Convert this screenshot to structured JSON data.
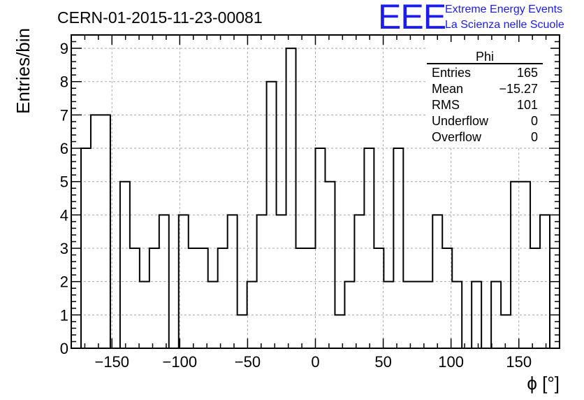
{
  "header": {
    "run_title": "CERN-01-2015-11-23-00081",
    "logo_text": "EEE",
    "logo_line1": "Extreme Energy Events",
    "logo_line2": "La Scienza nelle Scuole"
  },
  "stats_box": {
    "title": "Phi",
    "rows": [
      {
        "label": "Entries",
        "value": "165"
      },
      {
        "label": "Mean",
        "value": "−15.27"
      },
      {
        "label": "RMS",
        "value": "101"
      },
      {
        "label": "Underflow",
        "value": "0"
      },
      {
        "label": "Overflow",
        "value": "0"
      }
    ]
  },
  "chart_data": {
    "type": "bar",
    "style": "step-histogram",
    "xlabel": "ϕ [°]",
    "ylabel": "Entries/bin",
    "xlim": [
      -180,
      180
    ],
    "ylim": [
      0,
      9.4
    ],
    "grid": true,
    "bin_width": 7.2,
    "bin_low_edges": [
      -172.8,
      -165.6,
      -158.4,
      -151.2,
      -144.0,
      -136.8,
      -129.6,
      -122.4,
      -115.2,
      -108.0,
      -100.8,
      -93.6,
      -86.4,
      -79.2,
      -72.0,
      -64.8,
      -57.6,
      -50.4,
      -43.2,
      -36.0,
      -28.8,
      -21.6,
      -14.4,
      -7.2,
      0.0,
      7.2,
      14.4,
      21.6,
      28.8,
      36.0,
      43.2,
      50.4,
      57.6,
      64.8,
      72.0,
      79.2,
      86.4,
      93.6,
      100.8,
      108.0,
      115.2,
      122.4,
      129.6,
      136.8,
      144.0,
      151.2,
      158.4,
      165.6
    ],
    "values": [
      6,
      7,
      7,
      0,
      5,
      3,
      2,
      3,
      4,
      0,
      4,
      3,
      3,
      2,
      3,
      4,
      1,
      2,
      4,
      8,
      4,
      9,
      3,
      3,
      6,
      5,
      1,
      2,
      4,
      6,
      3,
      2,
      6,
      2,
      2,
      2,
      4,
      3,
      2,
      0,
      2,
      0,
      2,
      1,
      5,
      5,
      3,
      4
    ],
    "x_ticks": [
      -150,
      -100,
      -50,
      0,
      50,
      100,
      150
    ],
    "x_tick_labels": [
      "−150",
      "−100",
      "−50",
      "0",
      "50",
      "100",
      "150"
    ],
    "y_ticks": [
      0,
      1,
      2,
      3,
      4,
      5,
      6,
      7,
      8,
      9
    ],
    "y_tick_labels": [
      "0",
      "1",
      "2",
      "3",
      "4",
      "5",
      "6",
      "7",
      "8",
      "9"
    ],
    "line_color": "#000000",
    "grid_color": "#a9a9a9"
  }
}
